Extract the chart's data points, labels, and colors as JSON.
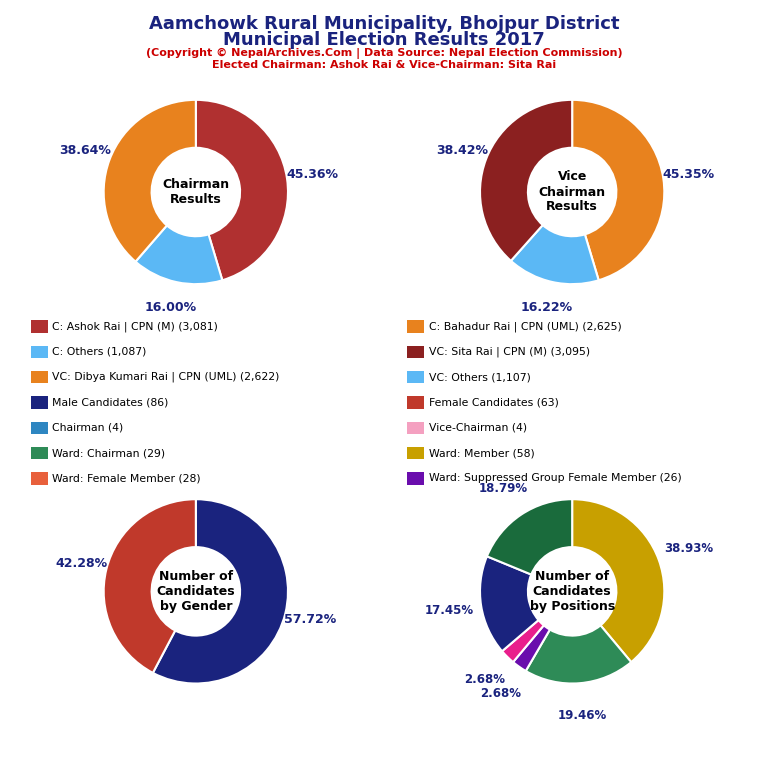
{
  "title_line1": "Aamchowk Rural Municipality, Bhojpur District",
  "title_line2": "Municipal Election Results 2017",
  "subtitle1": "(Copyright © NepalArchives.Com | Data Source: Nepal Election Commission)",
  "subtitle2": "Elected Chairman: Ashok Rai & Vice-Chairman: Sita Rai",
  "chairman": {
    "label": "Chairman\nResults",
    "values": [
      45.36,
      16.0,
      38.64
    ],
    "colors": [
      "#b03030",
      "#5bb8f5",
      "#e8821e"
    ],
    "pct_labels": [
      "45.36%",
      "16.00%",
      "38.64%"
    ],
    "startangle": 90
  },
  "vice_chairman": {
    "label": "Vice\nChairman\nResults",
    "values": [
      45.35,
      16.22,
      38.42
    ],
    "colors": [
      "#e8821e",
      "#5bb8f5",
      "#8b2020"
    ],
    "pct_labels": [
      "45.35%",
      "16.22%",
      "38.42%"
    ],
    "startangle": 90
  },
  "gender": {
    "label": "Number of\nCandidates\nby Gender",
    "values": [
      57.72,
      42.28
    ],
    "colors": [
      "#1a237e",
      "#c0392b"
    ],
    "pct_labels": [
      "57.72%",
      "42.28%"
    ],
    "startangle": 90
  },
  "positions": {
    "label": "Number of\nCandidates\nby Positions",
    "values": [
      38.93,
      19.46,
      2.68,
      2.68,
      17.45,
      18.79
    ],
    "colors": [
      "#c8a000",
      "#2e8b57",
      "#6a0dad",
      "#e91e8c",
      "#1a237e",
      "#1a6b3c"
    ],
    "pct_labels": [
      "38.93%",
      "19.46%",
      "2.68%",
      "2.68%",
      "17.45%",
      "18.79%"
    ],
    "startangle": 90
  },
  "legend_items_left": [
    {
      "label": "C: Ashok Rai | CPN (M) (3,081)",
      "color": "#b03030"
    },
    {
      "label": "C: Others (1,087)",
      "color": "#5bb8f5"
    },
    {
      "label": "VC: Dibya Kumari Rai | CPN (UML) (2,622)",
      "color": "#e8821e"
    },
    {
      "label": "Male Candidates (86)",
      "color": "#1a237e"
    },
    {
      "label": "Chairman (4)",
      "color": "#2e86c1"
    },
    {
      "label": "Ward: Chairman (29)",
      "color": "#2e8b57"
    },
    {
      "label": "Ward: Female Member (28)",
      "color": "#e8603c"
    }
  ],
  "legend_items_right": [
    {
      "label": "C: Bahadur Rai | CPN (UML) (2,625)",
      "color": "#e8821e"
    },
    {
      "label": "VC: Sita Rai | CPN (M) (3,095)",
      "color": "#8b2020"
    },
    {
      "label": "VC: Others (1,107)",
      "color": "#5bb8f5"
    },
    {
      "label": "Female Candidates (63)",
      "color": "#c0392b"
    },
    {
      "label": "Vice-Chairman (4)",
      "color": "#f4a0c0"
    },
    {
      "label": "Ward: Member (58)",
      "color": "#c8a000"
    },
    {
      "label": "Ward: Suppressed Group Female Member (26)",
      "color": "#6a0dad"
    }
  ],
  "background_color": "#ffffff",
  "title_color": "#1a237e",
  "subtitle_color": "#cc0000",
  "pct_label_color": "#1a237e"
}
